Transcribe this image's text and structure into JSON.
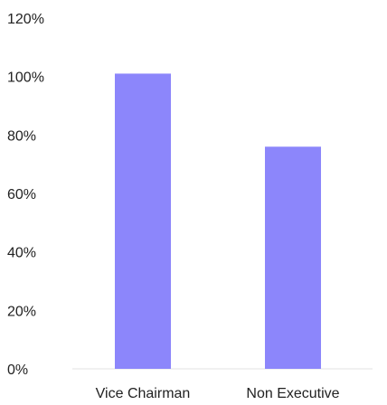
{
  "chart_data": {
    "type": "bar",
    "title": "",
    "xlabel": "",
    "ylabel": "",
    "categories": [
      "Vice Chairman",
      "Non Executive"
    ],
    "values": [
      101,
      76
    ],
    "ylim": [
      0,
      120
    ],
    "y_ticks": [
      0,
      20,
      40,
      60,
      80,
      100,
      120
    ],
    "y_tick_labels": [
      "0%",
      "20%",
      "40%",
      "60%",
      "80%",
      "100%",
      "120%"
    ],
    "grid": false,
    "legend": "none",
    "colors": {
      "bar": "#8c86fb",
      "axis": "#e3e3e3",
      "text": "#222222"
    }
  }
}
